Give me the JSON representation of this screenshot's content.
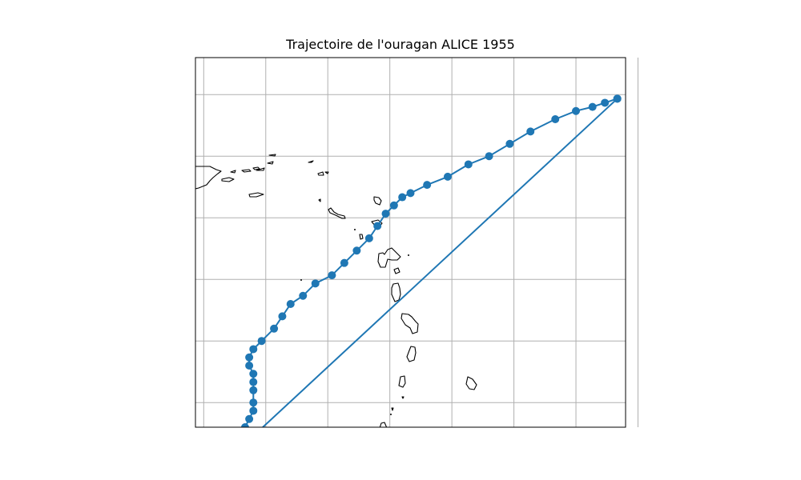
{
  "title": "Trajectoire de l'ouragan ALICE 1955",
  "colors": {
    "track": "#1f77b4",
    "grid": "#b0b0b0",
    "coast": "#000000",
    "frame": "#000000",
    "background": "#ffffff"
  },
  "chart_data": {
    "type": "line",
    "projection": "PlateCarree",
    "extent": {
      "lon": [
        -69.2,
        -58.8
      ],
      "lat": [
        9.9,
        18.9
      ]
    },
    "grid": true,
    "gridlines": {
      "lon": [
        -69,
        -67.5,
        -66,
        -64.5,
        -63,
        -61.5,
        -60,
        -58.5
      ],
      "lat": [
        10.5,
        12,
        13.5,
        15,
        16.5,
        18
      ]
    },
    "markers": "circle",
    "track": {
      "lon": [
        -59.0,
        -59.3,
        -59.6,
        -60.0,
        -60.5,
        -61.1,
        -61.6,
        -62.1,
        -62.6,
        -63.1,
        -63.6,
        -64.0,
        -64.2,
        -64.4,
        -64.6,
        -64.8,
        -65.0,
        -65.3,
        -65.6,
        -65.9,
        -66.3,
        -66.6,
        -66.9,
        -67.1,
        -67.3,
        -67.6,
        -67.8,
        -67.9,
        -67.9,
        -67.8,
        -67.8,
        -67.8,
        -67.8,
        -67.8,
        -67.9,
        -68.0,
        -68.0,
        -68.0,
        -68.0,
        -59.0
      ],
      "lat": [
        17.9,
        17.8,
        17.7,
        17.6,
        17.4,
        17.1,
        16.8,
        16.5,
        16.3,
        16.0,
        15.8,
        15.6,
        15.5,
        15.3,
        15.1,
        14.8,
        14.5,
        14.2,
        13.9,
        13.6,
        13.4,
        13.1,
        12.9,
        12.6,
        12.3,
        12.0,
        11.8,
        11.6,
        11.4,
        11.2,
        11.0,
        10.8,
        10.5,
        10.3,
        10.1,
        9.9,
        9.8,
        9.6,
        9.5,
        17.9
      ]
    }
  }
}
